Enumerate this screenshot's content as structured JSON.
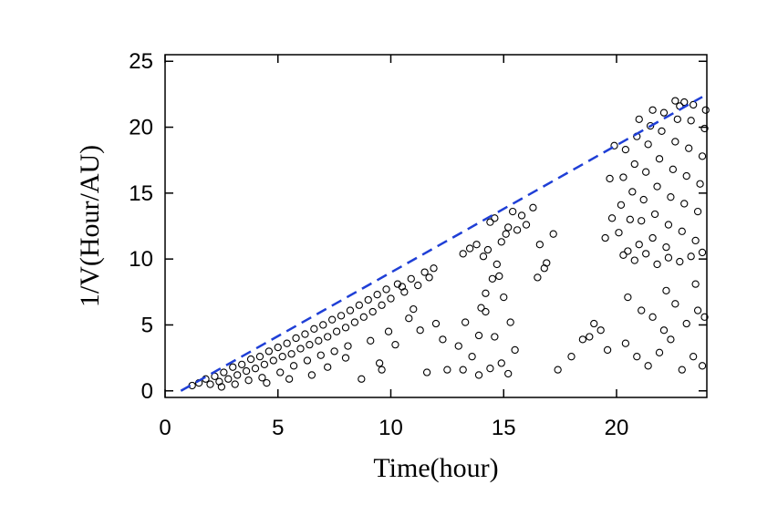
{
  "chart_data": {
    "type": "scatter",
    "xlabel": "Time(hour)",
    "ylabel": "1/V(Hour/AU)",
    "xlim": [
      0,
      24
    ],
    "ylim": [
      -0.5,
      25.5
    ],
    "x_ticks": [
      0,
      5,
      10,
      15,
      20
    ],
    "y_ticks": [
      0,
      5,
      10,
      15,
      20,
      25
    ],
    "grid": false,
    "marker": "open-circle",
    "marker_color": "#000000",
    "reference_line": {
      "style": "dashed",
      "color": "#1f3fd6",
      "x": [
        0.7,
        23.8
      ],
      "y": [
        0,
        22.3
      ]
    },
    "series": [
      {
        "points": [
          [
            1.2,
            0.4
          ],
          [
            1.5,
            0.6
          ],
          [
            1.8,
            0.9
          ],
          [
            2.0,
            0.5
          ],
          [
            2.2,
            1.1
          ],
          [
            2.4,
            0.7
          ],
          [
            2.6,
            1.4
          ],
          [
            2.8,
            0.9
          ],
          [
            3.0,
            1.8
          ],
          [
            3.2,
            1.2
          ],
          [
            3.4,
            2.0
          ],
          [
            3.6,
            1.5
          ],
          [
            3.8,
            2.4
          ],
          [
            4.0,
            1.7
          ],
          [
            4.2,
            2.6
          ],
          [
            4.4,
            2.0
          ],
          [
            4.6,
            3.0
          ],
          [
            4.8,
            2.3
          ],
          [
            5.0,
            3.3
          ],
          [
            5.2,
            2.6
          ],
          [
            5.4,
            3.6
          ],
          [
            5.6,
            2.8
          ],
          [
            5.8,
            4.0
          ],
          [
            6.0,
            3.2
          ],
          [
            6.2,
            4.3
          ],
          [
            6.4,
            3.5
          ],
          [
            6.6,
            4.7
          ],
          [
            6.8,
            3.8
          ],
          [
            7.0,
            5.0
          ],
          [
            7.2,
            4.1
          ],
          [
            7.4,
            5.4
          ],
          [
            7.6,
            4.5
          ],
          [
            7.8,
            5.7
          ],
          [
            8.0,
            4.8
          ],
          [
            8.2,
            6.1
          ],
          [
            8.4,
            5.2
          ],
          [
            8.6,
            6.5
          ],
          [
            8.8,
            5.6
          ],
          [
            9.0,
            6.9
          ],
          [
            9.2,
            6.0
          ],
          [
            9.4,
            7.3
          ],
          [
            9.6,
            6.5
          ],
          [
            9.8,
            7.7
          ],
          [
            10.0,
            7.0
          ],
          [
            10.3,
            8.1
          ],
          [
            10.6,
            7.5
          ],
          [
            10.9,
            8.5
          ],
          [
            11.2,
            8.0
          ],
          [
            11.5,
            9.0
          ],
          [
            11.7,
            8.6
          ],
          [
            2.5,
            0.3
          ],
          [
            3.1,
            0.5
          ],
          [
            3.7,
            0.8
          ],
          [
            4.3,
            1.0
          ],
          [
            5.1,
            1.4
          ],
          [
            5.7,
            1.9
          ],
          [
            6.3,
            2.3
          ],
          [
            6.9,
            2.7
          ],
          [
            7.5,
            3.0
          ],
          [
            8.1,
            3.4
          ],
          [
            4.5,
            0.6
          ],
          [
            5.5,
            0.9
          ],
          [
            6.5,
            1.2
          ],
          [
            7.2,
            1.8
          ],
          [
            8.0,
            2.5
          ],
          [
            9.1,
            3.8
          ],
          [
            9.5,
            2.1
          ],
          [
            10.2,
            3.5
          ],
          [
            10.8,
            5.5
          ],
          [
            11.3,
            4.6
          ],
          [
            11.0,
            6.2
          ],
          [
            12.0,
            5.1
          ],
          [
            12.3,
            3.9
          ],
          [
            11.6,
            1.4
          ],
          [
            12.5,
            1.6
          ],
          [
            9.6,
            1.6
          ],
          [
            8.7,
            0.9
          ],
          [
            10.5,
            7.9
          ],
          [
            11.9,
            9.3
          ],
          [
            9.9,
            4.5
          ],
          [
            13.2,
            1.6
          ],
          [
            13.6,
            2.6
          ],
          [
            13.0,
            3.4
          ],
          [
            13.9,
            4.2
          ],
          [
            13.3,
            5.2
          ],
          [
            14.0,
            6.3
          ],
          [
            14.2,
            7.4
          ],
          [
            14.5,
            8.5
          ],
          [
            14.7,
            9.6
          ],
          [
            14.3,
            10.7
          ],
          [
            14.9,
            11.3
          ],
          [
            15.2,
            12.4
          ],
          [
            14.6,
            13.1
          ],
          [
            15.4,
            13.6
          ],
          [
            15.1,
            11.9
          ],
          [
            14.4,
            12.8
          ],
          [
            13.8,
            11.1
          ],
          [
            15.6,
            12.2
          ],
          [
            15.8,
            13.3
          ],
          [
            14.1,
            10.2
          ],
          [
            14.8,
            8.7
          ],
          [
            15.0,
            7.1
          ],
          [
            14.2,
            6.0
          ],
          [
            15.3,
            5.2
          ],
          [
            14.6,
            4.1
          ],
          [
            15.5,
            3.1
          ],
          [
            14.9,
            2.1
          ],
          [
            15.2,
            1.3
          ],
          [
            14.4,
            1.7
          ],
          [
            13.9,
            1.2
          ],
          [
            16.0,
            12.6
          ],
          [
            16.3,
            13.9
          ],
          [
            16.6,
            11.1
          ],
          [
            16.9,
            9.7
          ],
          [
            17.2,
            11.9
          ],
          [
            17.4,
            1.6
          ],
          [
            16.5,
            8.6
          ],
          [
            16.8,
            9.3
          ],
          [
            13.5,
            10.8
          ],
          [
            13.2,
            10.4
          ],
          [
            18.0,
            2.6
          ],
          [
            18.5,
            3.9
          ],
          [
            19.0,
            5.1
          ],
          [
            19.3,
            4.6
          ],
          [
            19.6,
            3.1
          ],
          [
            18.8,
            4.1
          ],
          [
            19.8,
            13.1
          ],
          [
            19.5,
            11.6
          ],
          [
            19.7,
            16.1
          ],
          [
            19.9,
            18.6
          ],
          [
            20.1,
            12.0
          ],
          [
            20.2,
            14.1
          ],
          [
            20.3,
            16.2
          ],
          [
            20.4,
            18.3
          ],
          [
            20.5,
            10.6
          ],
          [
            20.6,
            13.0
          ],
          [
            20.7,
            15.1
          ],
          [
            20.8,
            17.2
          ],
          [
            20.9,
            19.3
          ],
          [
            21.0,
            11.1
          ],
          [
            21.1,
            12.9
          ],
          [
            21.2,
            14.5
          ],
          [
            21.3,
            16.6
          ],
          [
            21.4,
            18.7
          ],
          [
            21.5,
            20.1
          ],
          [
            21.6,
            11.6
          ],
          [
            21.7,
            13.4
          ],
          [
            21.8,
            15.5
          ],
          [
            21.9,
            17.6
          ],
          [
            22.0,
            19.7
          ],
          [
            22.1,
            21.1
          ],
          [
            22.2,
            10.9
          ],
          [
            22.3,
            12.6
          ],
          [
            22.4,
            14.7
          ],
          [
            22.5,
            16.8
          ],
          [
            22.6,
            18.9
          ],
          [
            22.7,
            20.6
          ],
          [
            22.8,
            21.6
          ],
          [
            22.9,
            12.1
          ],
          [
            23.0,
            14.2
          ],
          [
            23.1,
            16.3
          ],
          [
            23.2,
            18.4
          ],
          [
            23.3,
            20.5
          ],
          [
            23.4,
            21.7
          ],
          [
            23.5,
            11.4
          ],
          [
            23.6,
            13.6
          ],
          [
            23.7,
            15.7
          ],
          [
            23.8,
            17.8
          ],
          [
            23.9,
            19.9
          ],
          [
            23.95,
            21.3
          ],
          [
            20.3,
            10.3
          ],
          [
            20.8,
            9.9
          ],
          [
            21.3,
            10.4
          ],
          [
            21.8,
            9.6
          ],
          [
            22.3,
            10.1
          ],
          [
            22.8,
            9.8
          ],
          [
            23.3,
            10.2
          ],
          [
            23.8,
            10.5
          ],
          [
            21.0,
            20.6
          ],
          [
            21.6,
            21.3
          ],
          [
            22.6,
            22.0
          ],
          [
            23.0,
            21.9
          ],
          [
            20.5,
            7.1
          ],
          [
            21.1,
            6.1
          ],
          [
            21.6,
            5.6
          ],
          [
            22.1,
            4.6
          ],
          [
            22.6,
            6.6
          ],
          [
            23.1,
            5.1
          ],
          [
            23.6,
            6.1
          ],
          [
            23.9,
            5.6
          ],
          [
            20.4,
            3.6
          ],
          [
            20.9,
            2.6
          ],
          [
            21.4,
            1.9
          ],
          [
            21.9,
            2.9
          ],
          [
            22.4,
            3.9
          ],
          [
            22.9,
            1.6
          ],
          [
            23.4,
            2.6
          ],
          [
            23.8,
            1.9
          ],
          [
            22.2,
            7.6
          ],
          [
            23.5,
            8.1
          ]
        ]
      }
    ]
  }
}
